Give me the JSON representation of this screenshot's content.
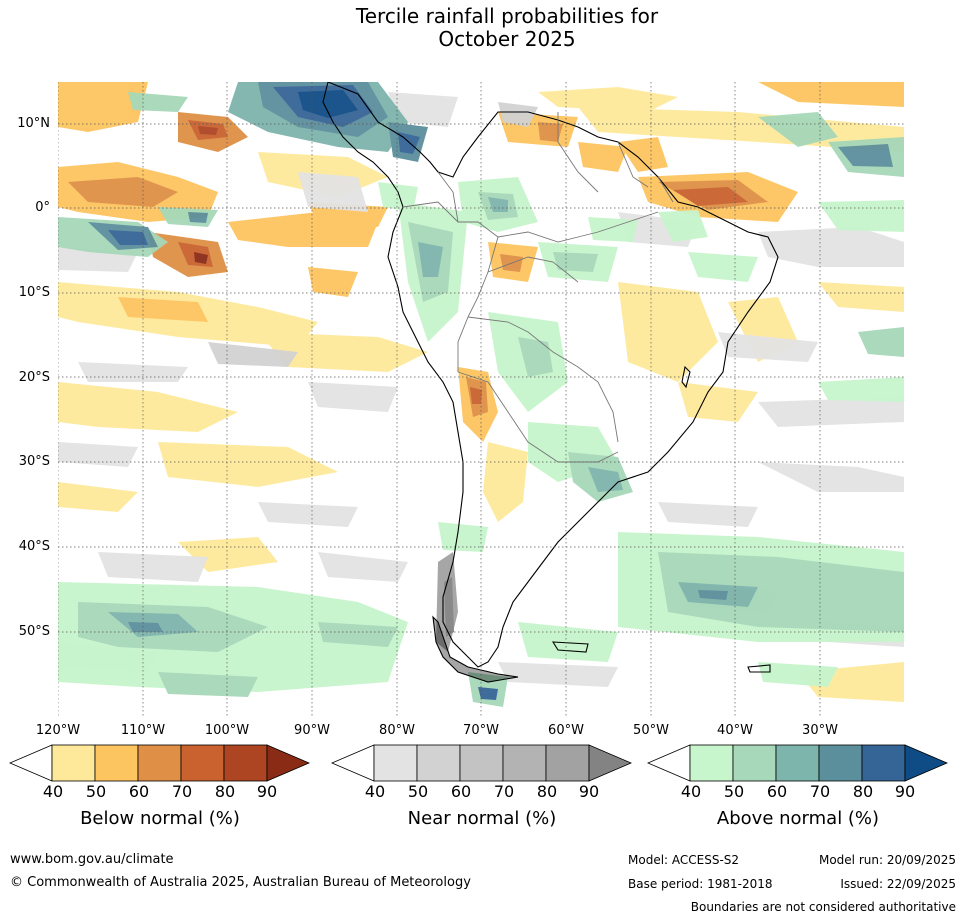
{
  "title": {
    "line1": "Tercile rainfall probabilities for",
    "line2": "October 2025"
  },
  "map": {
    "region": "South America",
    "lat_labels": [
      "10°N",
      "0°",
      "10°S",
      "20°S",
      "30°S",
      "40°S",
      "50°S"
    ],
    "lon_labels": [
      "120°W",
      "110°W",
      "100°W",
      "90°W",
      "80°W",
      "70°W",
      "60°W",
      "50°W",
      "40°W",
      "30°W"
    ]
  },
  "colorbars": [
    {
      "name": "below",
      "title": "Below normal (%)",
      "ticks": [
        "40",
        "50",
        "60",
        "70",
        "80",
        "90"
      ],
      "colors": [
        "#ffffff",
        "#fee99a",
        "#fdc55f",
        "#df9046",
        "#c9622f",
        "#ad4523",
        "#8a2b16"
      ]
    },
    {
      "name": "near",
      "title": "Near normal (%)",
      "ticks": [
        "40",
        "50",
        "60",
        "70",
        "80",
        "90"
      ],
      "colors": [
        "#ffffff",
        "#e3e3e3",
        "#d2d2d2",
        "#c3c3c3",
        "#b3b3b3",
        "#a2a2a2",
        "#838383"
      ]
    },
    {
      "name": "above",
      "title": "Above normal (%)",
      "ticks": [
        "40",
        "50",
        "60",
        "70",
        "80",
        "90"
      ],
      "colors": [
        "#ffffff",
        "#c7f5cc",
        "#a6d8b9",
        "#7db4ab",
        "#5c8f9c",
        "#356596",
        "#0f4c85"
      ]
    }
  ],
  "footer": {
    "url": "www.bom.gov.au/climate",
    "copyright": "© Commonwealth of Australia 2025, Australian Bureau of Meteorology",
    "model": "Model: ACCESS-S2",
    "base_period": "Base period: 1981-2018",
    "model_run": "Model run: 20/09/2025",
    "issued": "Issued: 22/09/2025",
    "disclaimer": "Boundaries are not considered authoritative"
  }
}
